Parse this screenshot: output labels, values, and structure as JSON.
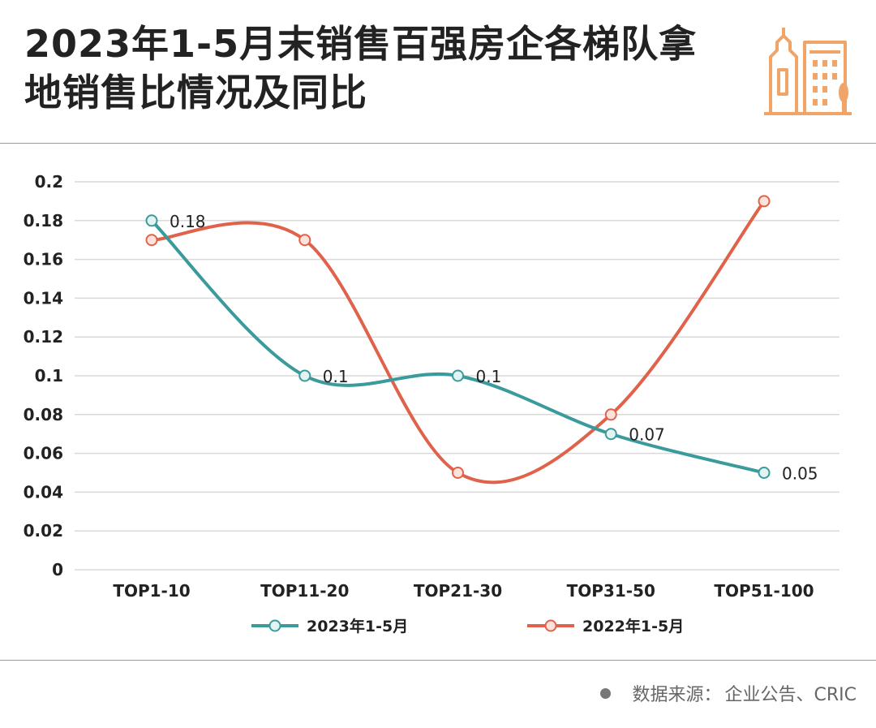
{
  "title": "2023年1-5月末销售百强房企各梯队拿地销售比情况及同比",
  "source": {
    "label": "数据来源：",
    "text": "企业公告、CRIC"
  },
  "colors": {
    "series_2023": "#3a9a9c",
    "series_2022": "#e0624a",
    "logo": "#f0a468",
    "grid": "#d9d9d9"
  },
  "chart_data": {
    "type": "line",
    "categories": [
      "TOP1-10",
      "TOP11-20",
      "TOP21-30",
      "TOP31-50",
      "TOP51-100"
    ],
    "ylim": [
      0,
      0.2
    ],
    "yticks": [
      "0",
      "0.02",
      "0.04",
      "0.06",
      "0.08",
      "0.1",
      "0.12",
      "0.14",
      "0.16",
      "0.18",
      "0.2"
    ],
    "grid": true,
    "smooth": true,
    "legend": "bottom",
    "series": [
      {
        "name": "2023年1-5月",
        "values": [
          0.18,
          0.1,
          0.1,
          0.07,
          0.05
        ],
        "labels": [
          "0.18",
          "0.1",
          "0.1",
          "0.07",
          "0.05"
        ],
        "color": "#3a9a9c"
      },
      {
        "name": "2022年1-5月",
        "values": [
          0.17,
          0.17,
          0.05,
          0.08,
          0.19
        ],
        "labels": [],
        "color": "#e0624a"
      }
    ]
  }
}
